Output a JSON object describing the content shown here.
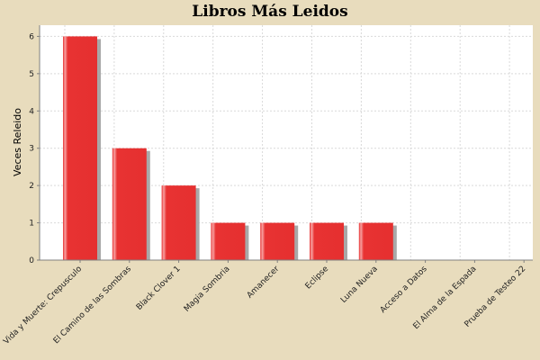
{
  "chart_data": {
    "type": "bar",
    "title": "Libros Más Leidos",
    "xlabel": "",
    "ylabel": "Veces Releido",
    "ylim": [
      0,
      6.3
    ],
    "yticks": [
      0,
      1,
      2,
      3,
      4,
      5,
      6
    ],
    "grid": true,
    "legend": "none",
    "categories": [
      "Vida y Muerte: Crepusculo",
      "El Camino de las Sombras",
      "Black Clover 1",
      "Magia Sombria",
      "Amanecer",
      "Eclipse",
      "Luna Nueva",
      "Acceso a Datos",
      "El Alma de la Espada",
      "Prueba de Testeo 22"
    ],
    "values": [
      6,
      3,
      2,
      1,
      1,
      1,
      1,
      0,
      0,
      0
    ],
    "colors": {
      "bar": "#e83232",
      "shadow": "#a8a8a8",
      "background": "#e8dcbd",
      "plot": "#ffffff",
      "grid": "#d9d9d9"
    }
  }
}
